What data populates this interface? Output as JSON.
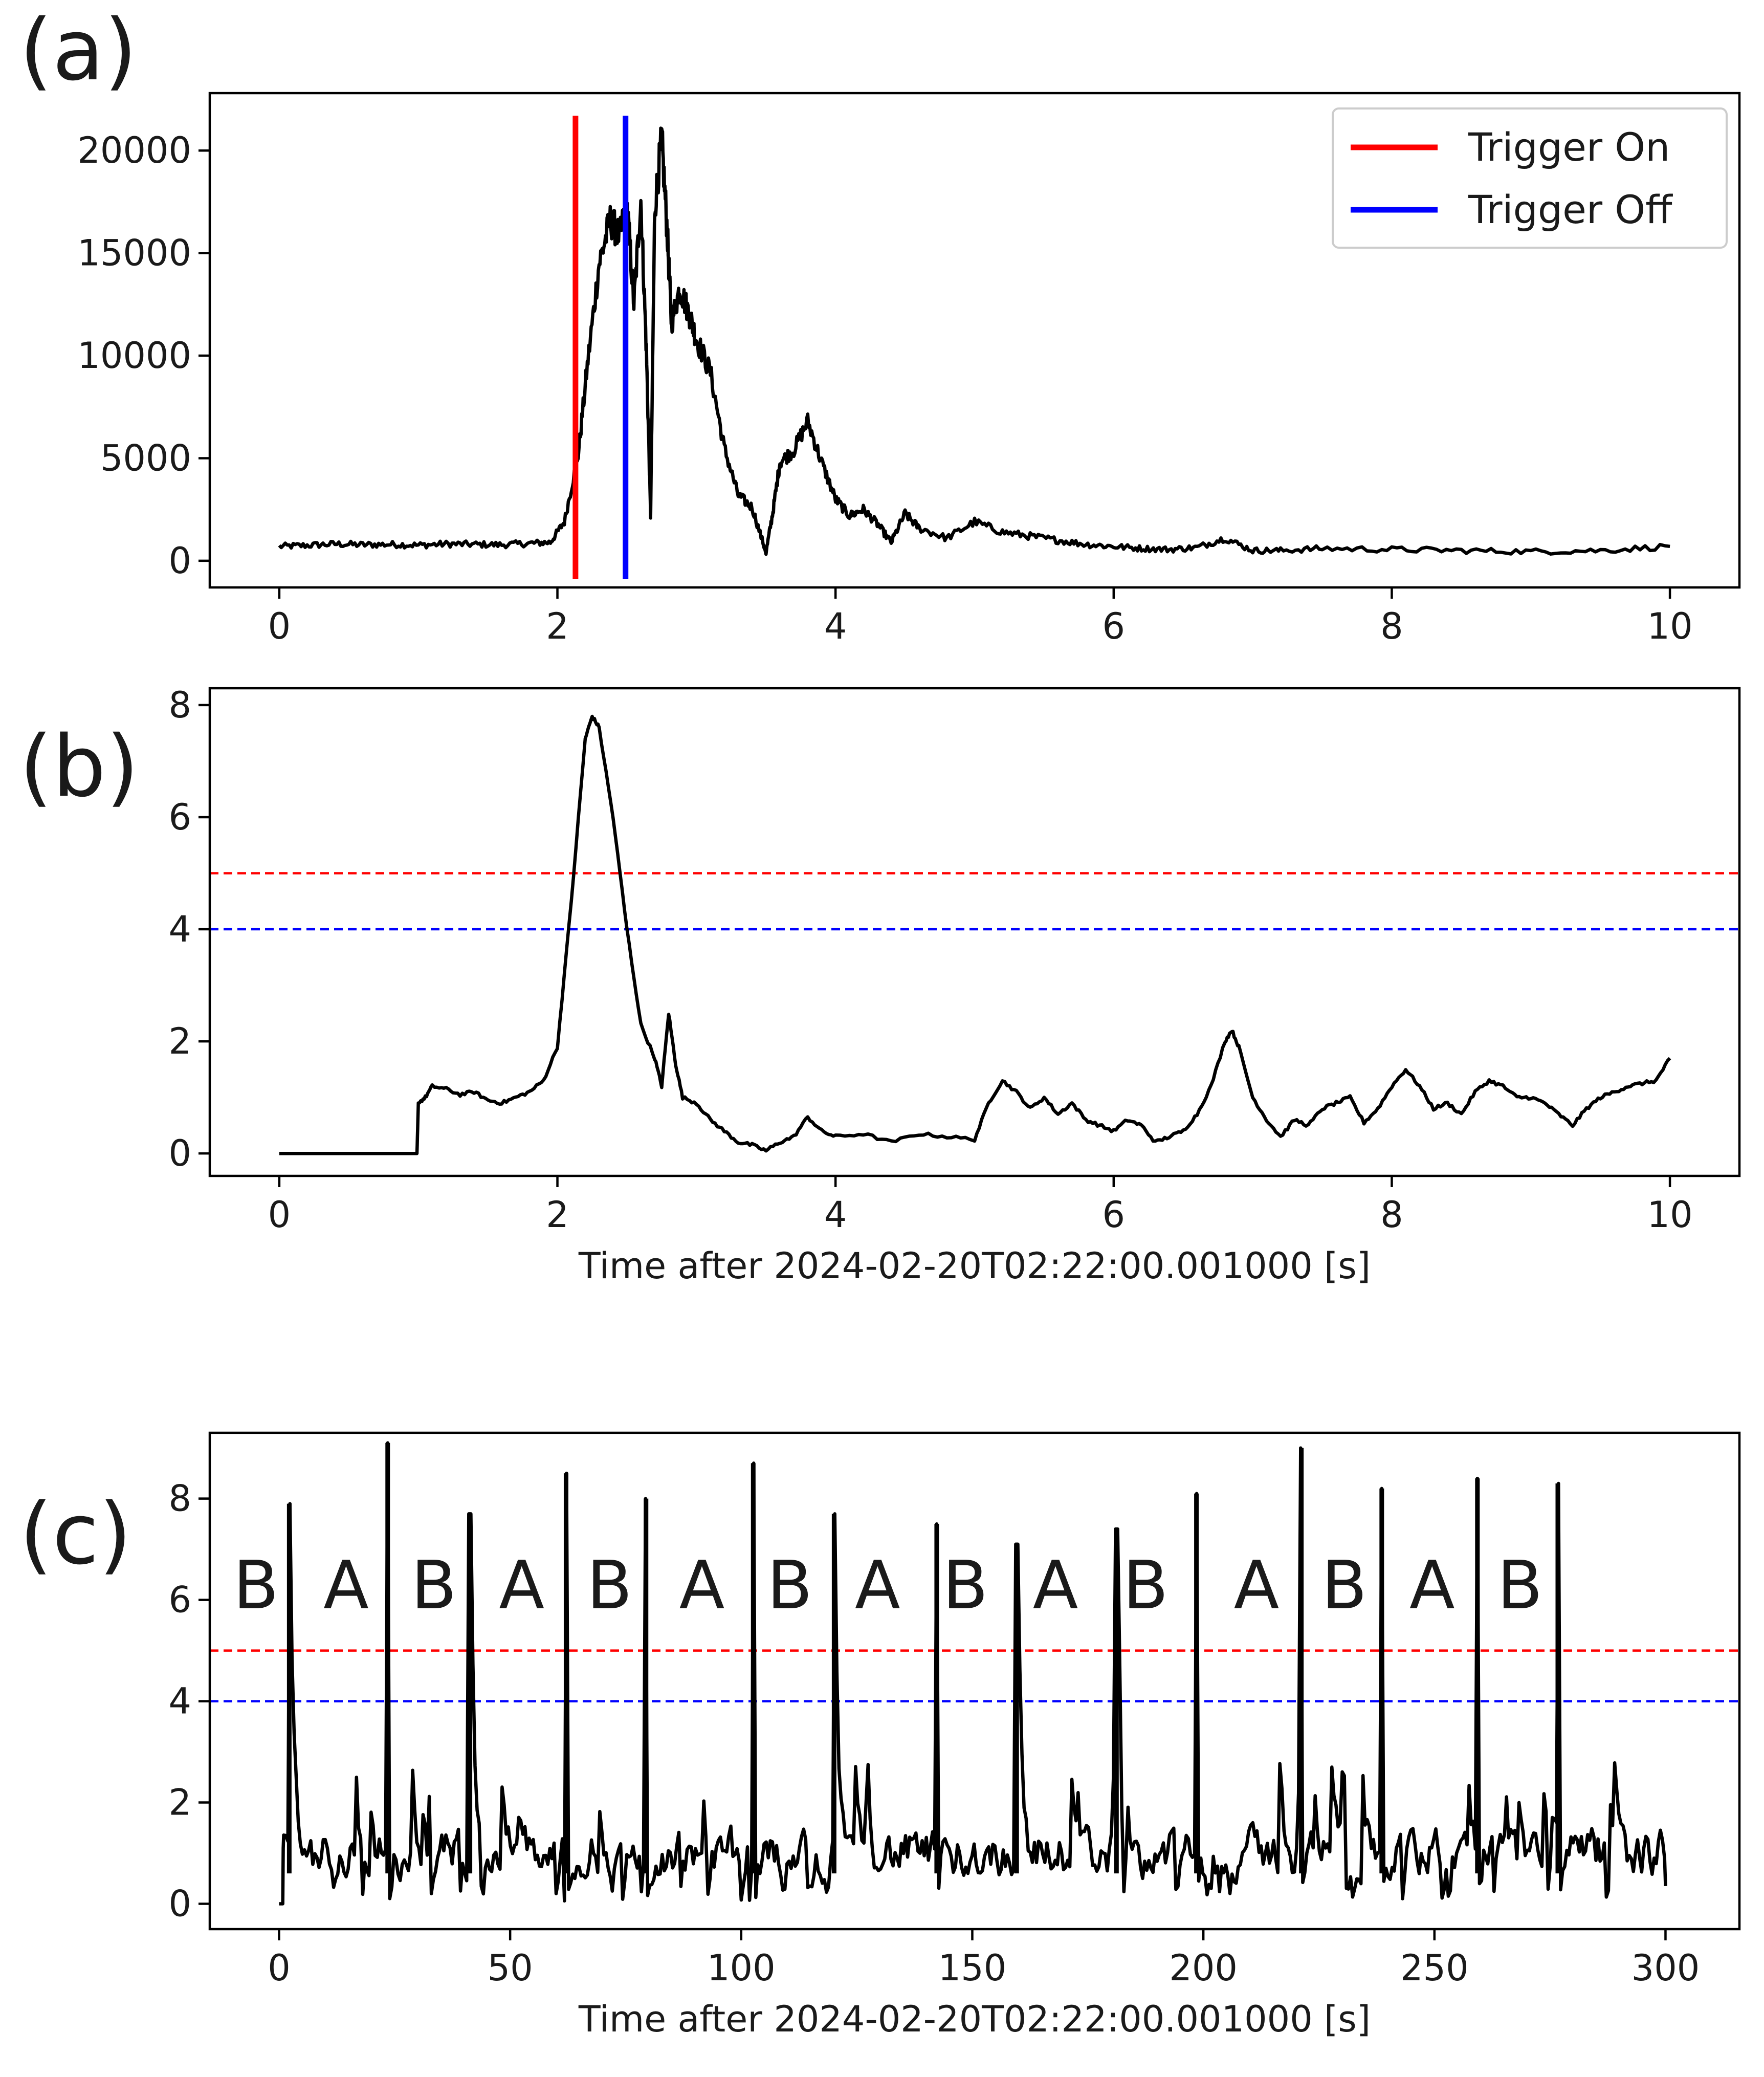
{
  "figure": {
    "panel_labels": [
      "(a)",
      "(b)",
      "(c)"
    ]
  },
  "chart_data": [
    {
      "id": "a",
      "type": "line",
      "panel_label": "(a)",
      "xlabel": "",
      "ylabel": "",
      "xlim": [
        -0.5,
        10.5
      ],
      "ylim": [
        -1300,
        22800
      ],
      "xticks": [
        0,
        2,
        4,
        6,
        8,
        10
      ],
      "yticks": [
        0,
        5000,
        10000,
        15000,
        20000
      ],
      "grid": false,
      "legend": {
        "placement": "top-right",
        "entries": [
          "Trigger On",
          "Trigger Off"
        ]
      },
      "trigger_lines": [
        {
          "name": "Trigger On",
          "x": 2.13,
          "color": "#ff0000"
        },
        {
          "name": "Trigger Off",
          "x": 2.49,
          "color": "#0000ff"
        }
      ],
      "trigger_y_range": [
        -900,
        21700
      ],
      "series": [
        {
          "color": "#000000",
          "x": [
            0,
            0.2,
            0.4,
            0.6,
            0.8,
            1.0,
            1.2,
            1.4,
            1.6,
            1.8,
            1.95,
            2.05,
            2.15,
            2.22,
            2.3,
            2.38,
            2.45,
            2.5,
            2.55,
            2.6,
            2.64,
            2.67,
            2.7,
            2.75,
            2.79,
            2.82,
            2.88,
            2.95,
            3.0,
            3.1,
            3.2,
            3.3,
            3.4,
            3.5,
            3.55,
            3.6,
            3.7,
            3.8,
            3.9,
            4.0,
            4.1,
            4.2,
            4.3,
            4.4,
            4.5,
            4.6,
            4.8,
            5.0,
            5.2,
            5.4,
            5.6,
            5.8,
            6.0,
            6.2,
            6.4,
            6.6,
            6.8,
            7.0,
            7.2,
            7.5,
            8.0,
            8.5,
            9.0,
            9.5,
            10.0
          ],
          "y": [
            700,
            750,
            820,
            780,
            800,
            760,
            820,
            800,
            780,
            850,
            900,
            1900,
            5200,
            9800,
            14500,
            16600,
            15800,
            17500,
            12500,
            17600,
            10200,
            2200,
            17200,
            20600,
            16000,
            11600,
            13300,
            12000,
            10800,
            9200,
            5500,
            3200,
            2600,
            400,
            2400,
            4800,
            5400,
            6800,
            4800,
            3000,
            2200,
            2500,
            1800,
            900,
            2300,
            1600,
            1100,
            1900,
            1400,
            1200,
            1000,
            800,
            700,
            600,
            550,
            650,
            1100,
            500,
            500,
            600,
            550,
            500,
            450,
            500,
            700
          ]
        }
      ]
    },
    {
      "id": "b",
      "type": "line",
      "panel_label": "(b)",
      "xlabel": "Time after 2024-02-20T02:22:00.001000 [s]",
      "ylabel": "",
      "xlim": [
        -0.5,
        10.5
      ],
      "ylim": [
        -0.4,
        8.3
      ],
      "xticks": [
        0,
        2,
        4,
        6,
        8,
        10
      ],
      "yticks": [
        0,
        2,
        4,
        6,
        8
      ],
      "grid": false,
      "thresholds": [
        {
          "name": "Trigger On",
          "value": 5,
          "color": "#ff0000",
          "style": "dashed"
        },
        {
          "name": "Trigger Off",
          "value": 4,
          "color": "#0000ff",
          "style": "dashed"
        }
      ],
      "series": [
        {
          "color": "#000000",
          "x": [
            0,
            0.99,
            1.0,
            1.05,
            1.1,
            1.2,
            1.3,
            1.4,
            1.5,
            1.6,
            1.7,
            1.8,
            1.9,
            2.0,
            2.1,
            2.2,
            2.25,
            2.3,
            2.4,
            2.5,
            2.6,
            2.7,
            2.75,
            2.8,
            2.85,
            2.9,
            3.0,
            3.1,
            3.2,
            3.3,
            3.4,
            3.5,
            3.6,
            3.7,
            3.8,
            3.9,
            4.0,
            4.2,
            4.4,
            4.6,
            4.8,
            5.0,
            5.1,
            5.2,
            5.3,
            5.4,
            5.5,
            5.6,
            5.7,
            5.8,
            5.9,
            6.0,
            6.1,
            6.2,
            6.3,
            6.4,
            6.5,
            6.6,
            6.7,
            6.8,
            6.85,
            6.9,
            7.0,
            7.1,
            7.2,
            7.3,
            7.4,
            7.5,
            7.6,
            7.7,
            7.8,
            7.9,
            8.0,
            8.1,
            8.2,
            8.3,
            8.4,
            8.5,
            8.6,
            8.7,
            8.8,
            8.9,
            9.0,
            9.1,
            9.2,
            9.3,
            9.4,
            9.5,
            9.6,
            9.7,
            9.8,
            9.9,
            10.0
          ],
          "y": [
            0,
            0,
            0.9,
            1.0,
            1.2,
            1.15,
            1.05,
            1.1,
            0.95,
            0.9,
            1.0,
            1.1,
            1.3,
            1.9,
            4.5,
            7.4,
            7.8,
            7.6,
            6.0,
            4.0,
            2.3,
            1.7,
            1.2,
            2.5,
            1.6,
            1.0,
            0.9,
            0.6,
            0.4,
            0.2,
            0.15,
            0.05,
            0.2,
            0.3,
            0.65,
            0.4,
            0.3,
            0.35,
            0.2,
            0.35,
            0.3,
            0.25,
            0.9,
            1.3,
            1.1,
            0.8,
            1.0,
            0.7,
            0.9,
            0.6,
            0.5,
            0.4,
            0.6,
            0.5,
            0.2,
            0.3,
            0.4,
            0.7,
            1.2,
            2.0,
            2.2,
            1.9,
            1.0,
            0.6,
            0.3,
            0.6,
            0.5,
            0.8,
            0.9,
            1.0,
            0.55,
            0.8,
            1.2,
            1.5,
            1.2,
            0.8,
            0.9,
            0.7,
            1.1,
            1.3,
            1.2,
            1.0,
            1.0,
            0.9,
            0.7,
            0.5,
            0.8,
            1.0,
            1.1,
            1.2,
            1.25,
            1.3,
            1.7
          ]
        }
      ]
    },
    {
      "id": "c",
      "type": "line",
      "panel_label": "(c)",
      "xlabel": "Time after 2024-02-20T02:22:00.001000 [s]",
      "ylabel": "",
      "xlim": [
        -15,
        316
      ],
      "ylim": [
        -0.5,
        9.3
      ],
      "xticks": [
        0,
        50,
        100,
        150,
        200,
        250,
        300
      ],
      "yticks": [
        0,
        2,
        4,
        6,
        8
      ],
      "grid": false,
      "thresholds": [
        {
          "name": "Trigger On",
          "value": 5,
          "color": "#ff0000",
          "style": "dashed"
        },
        {
          "name": "Trigger Off",
          "value": 4,
          "color": "#0000ff",
          "style": "dashed"
        }
      ],
      "spikes": [
        {
          "t": 2.2,
          "peak": 7.9
        },
        {
          "t": 23.5,
          "peak": 9.1
        },
        {
          "t": 41.3,
          "peak": 7.7
        },
        {
          "t": 62.1,
          "peak": 8.5
        },
        {
          "t": 79.4,
          "peak": 8.0
        },
        {
          "t": 102.6,
          "peak": 8.7
        },
        {
          "t": 120.1,
          "peak": 7.7
        },
        {
          "t": 142.3,
          "peak": 7.5
        },
        {
          "t": 159.6,
          "peak": 7.1
        },
        {
          "t": 181.2,
          "peak": 7.4
        },
        {
          "t": 198.5,
          "peak": 8.1
        },
        {
          "t": 221.2,
          "peak": 9.0
        },
        {
          "t": 238.6,
          "peak": 8.2
        },
        {
          "t": 259.3,
          "peak": 8.4
        },
        {
          "t": 276.7,
          "peak": 8.3
        }
      ],
      "segment_labels": [
        {
          "text": "B",
          "x": -5
        },
        {
          "text": "A",
          "x": 14.5
        },
        {
          "text": "B",
          "x": 33.5
        },
        {
          "text": "A",
          "x": 52.5
        },
        {
          "text": "B",
          "x": 71.5
        },
        {
          "text": "A",
          "x": 91.5
        },
        {
          "text": "B",
          "x": 110.5
        },
        {
          "text": "A",
          "x": 129.5
        },
        {
          "text": "B",
          "x": 148.5
        },
        {
          "text": "A",
          "x": 168
        },
        {
          "text": "B",
          "x": 187.5
        },
        {
          "text": "A",
          "x": 211.5
        },
        {
          "text": "B",
          "x": 230.5
        },
        {
          "text": "A",
          "x": 249.5
        },
        {
          "text": "B",
          "x": 268.5
        }
      ],
      "segment_label_y": 6.3,
      "noise_level": 1.0,
      "series": [
        {
          "color": "#000000",
          "x_range": [
            0,
            300
          ]
        }
      ]
    }
  ]
}
